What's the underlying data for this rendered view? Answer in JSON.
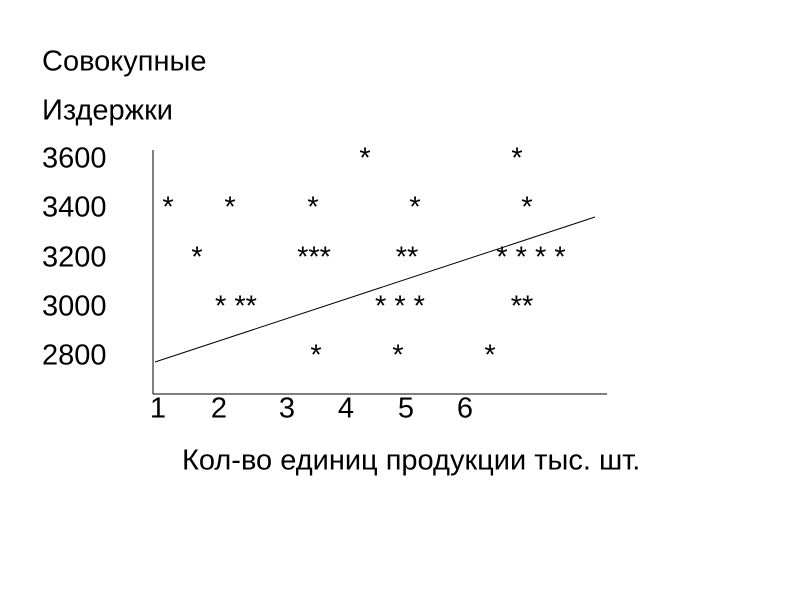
{
  "title_lines": [
    "Совокупные",
    "Издержки"
  ],
  "rows": [
    {
      "label": "3600",
      "marks": [
        "*",
        "*"
      ]
    },
    {
      "label": "3400",
      "marks": [
        "*",
        "*",
        "*",
        "*",
        "*"
      ]
    },
    {
      "label": "3200",
      "marks": [
        "*",
        "***",
        "**",
        "* * * *"
      ]
    },
    {
      "label": "3000",
      "marks": [
        "* **",
        "* * *",
        "**"
      ]
    },
    {
      "label": "2800",
      "marks": [
        "*",
        "*",
        "*"
      ]
    }
  ],
  "x_labels": [
    "1",
    "2",
    "3",
    "4",
    "5",
    "6"
  ],
  "x_title": "Кол-во единиц продукции тыс. шт."
}
